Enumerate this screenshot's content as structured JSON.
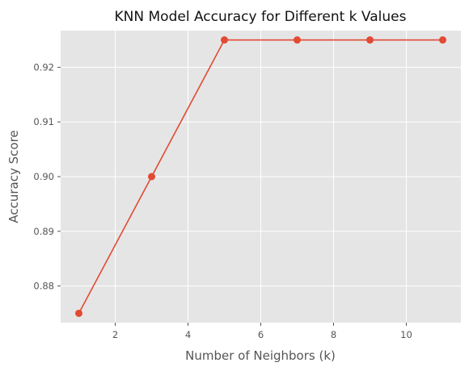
{
  "chart_data": {
    "type": "line",
    "title": "KNN Model Accuracy for Different k Values",
    "xlabel": "Number of Neighbors (k)",
    "ylabel": "Accuracy Score",
    "xlim": [
      0.5,
      11.5
    ],
    "ylim": [
      0.8733,
      0.9267
    ],
    "xticks": [
      2,
      4,
      6,
      8,
      10
    ],
    "yticks": [
      0.88,
      0.89,
      0.9,
      0.91,
      0.92
    ],
    "ytick_labels": [
      "0.88",
      "0.89",
      "0.90",
      "0.91",
      "0.92"
    ],
    "grid": true,
    "series": [
      {
        "x": [
          1,
          3,
          5,
          7,
          9,
          11
        ],
        "values": [
          0.875,
          0.9,
          0.925,
          0.925,
          0.925,
          0.925
        ],
        "color": "#E24A33",
        "marker": "circle"
      }
    ],
    "background": "#E5E5E5",
    "grid_color": "#FFFFFF"
  }
}
